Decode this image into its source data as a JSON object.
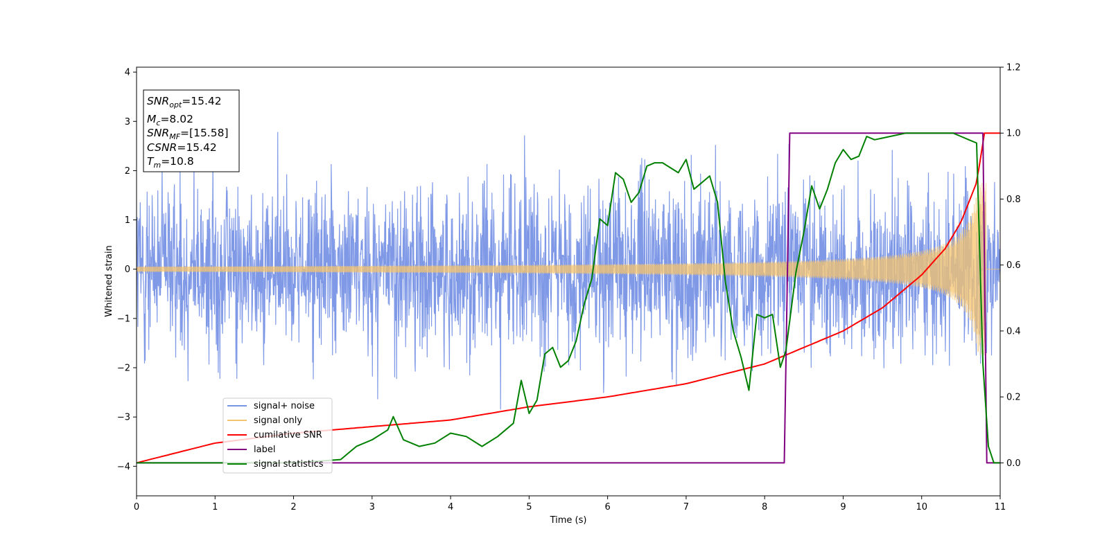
{
  "chart_data": {
    "type": "line",
    "xlabel": "Time (s)",
    "ylabel": "Whitened strain",
    "xlim": [
      0,
      11
    ],
    "ylim": [
      -4.6,
      4.1
    ],
    "y2lim": [
      -0.1,
      1.2
    ],
    "xticks": [
      "0",
      "1",
      "2",
      "3",
      "4",
      "5",
      "6",
      "7",
      "8",
      "9",
      "10",
      "11"
    ],
    "yticks": [
      "4",
      "3",
      "2",
      "1",
      "0",
      "−1",
      "−2",
      "−3",
      "−4"
    ],
    "y2ticks": [
      "1.2",
      "1.0",
      "0.8",
      "0.6",
      "0.4",
      "0.2",
      "0.0"
    ],
    "info_box": [
      {
        "name": "SNR",
        "sub": "opt",
        "value": "=15.42"
      },
      {
        "name": "M",
        "sub": "c",
        "value": "=8.02"
      },
      {
        "name": "SNR",
        "sub": "MF",
        "value": "=[15.58]"
      },
      {
        "name": "CSNR",
        "sub": "",
        "value": "=15.42"
      },
      {
        "name": "T",
        "sub": "m",
        "value": "=10.8"
      }
    ],
    "legend_position": "lower-left",
    "series": [
      {
        "name": "signal+ noise",
        "color": "#7894e6",
        "axis": "left",
        "description": "whitened noisy strain, roughly within ±2.3 with spikes to ±3.6"
      },
      {
        "name": "signal only",
        "color": "#f5c46e",
        "axis": "left",
        "description": "chirp, amplitude growing from ~0.05 at t=0 to ~1.7 at t≈10.8"
      },
      {
        "name": "cumilative SNR",
        "color": "#ff0000",
        "axis": "right",
        "x": [
          0,
          1,
          2,
          3,
          4,
          5,
          6,
          7,
          8,
          9,
          9.5,
          10,
          10.3,
          10.5,
          10.7,
          10.8,
          11
        ],
        "y": [
          0.0,
          0.06,
          0.09,
          0.11,
          0.13,
          0.17,
          0.2,
          0.24,
          0.3,
          0.4,
          0.47,
          0.57,
          0.65,
          0.73,
          0.85,
          1.0,
          1.0
        ]
      },
      {
        "name": "label",
        "color": "#800080",
        "axis": "right",
        "x": [
          0,
          8.25,
          8.32,
          10.78,
          10.83,
          11
        ],
        "y": [
          0,
          0,
          1,
          1,
          0,
          0
        ]
      },
      {
        "name": "signal statistics",
        "color": "#008000",
        "axis": "right",
        "x": [
          0,
          1,
          2,
          2.6,
          2.8,
          3.0,
          3.2,
          3.27,
          3.4,
          3.6,
          3.8,
          4.0,
          4.2,
          4.4,
          4.6,
          4.8,
          4.9,
          5.0,
          5.1,
          5.2,
          5.3,
          5.4,
          5.5,
          5.6,
          5.7,
          5.8,
          5.9,
          6.0,
          6.1,
          6.2,
          6.3,
          6.4,
          6.5,
          6.6,
          6.7,
          6.9,
          7.0,
          7.1,
          7.2,
          7.3,
          7.4,
          7.5,
          7.6,
          7.7,
          7.8,
          7.9,
          8.0,
          8.1,
          8.2,
          8.27,
          8.4,
          8.5,
          8.6,
          8.7,
          8.8,
          8.9,
          9.0,
          9.1,
          9.2,
          9.3,
          9.4,
          9.6,
          9.8,
          10.0,
          10.2,
          10.4,
          10.5,
          10.6,
          10.7,
          10.78,
          10.85,
          10.92,
          11.0
        ],
        "y": [
          0,
          0,
          0,
          0.01,
          0.05,
          0.07,
          0.1,
          0.14,
          0.07,
          0.05,
          0.06,
          0.09,
          0.08,
          0.05,
          0.08,
          0.12,
          0.25,
          0.15,
          0.19,
          0.33,
          0.35,
          0.29,
          0.31,
          0.37,
          0.48,
          0.56,
          0.74,
          0.72,
          0.88,
          0.86,
          0.79,
          0.82,
          0.9,
          0.91,
          0.91,
          0.88,
          0.92,
          0.83,
          0.85,
          0.87,
          0.79,
          0.55,
          0.4,
          0.32,
          0.22,
          0.45,
          0.44,
          0.45,
          0.29,
          0.34,
          0.58,
          0.7,
          0.84,
          0.77,
          0.83,
          0.91,
          0.95,
          0.92,
          0.93,
          0.99,
          0.98,
          0.99,
          1.0,
          1.0,
          1.0,
          1.0,
          0.99,
          0.98,
          0.97,
          0.3,
          0.05,
          0.0,
          0.0
        ]
      }
    ]
  }
}
